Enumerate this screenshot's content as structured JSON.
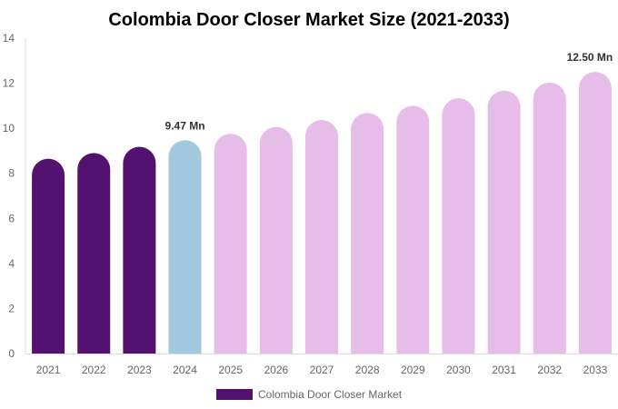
{
  "chart_data": {
    "type": "bar",
    "title": "Colombia Door Closer Market Size (2021-2033)",
    "xlabel": "",
    "ylabel": "",
    "ylim": [
      0,
      14
    ],
    "yticks": [
      "0",
      "2",
      "4",
      "6",
      "8",
      "10",
      "12",
      "14"
    ],
    "grid": false,
    "legend_position": "bottom",
    "categories": [
      "2021",
      "2022",
      "2023",
      "2024",
      "2025",
      "2026",
      "2027",
      "2028",
      "2029",
      "2030",
      "2031",
      "2032",
      "2033"
    ],
    "series": [
      {
        "name": "Colombia Door Closer Market",
        "values": [
          8.65,
          8.9,
          9.18,
          9.47,
          9.76,
          10.06,
          10.37,
          10.68,
          11.0,
          11.33,
          11.67,
          12.03,
          12.5
        ]
      }
    ],
    "bar_colors": [
      "#541270",
      "#541270",
      "#541270",
      "#a3c9de",
      "#e6bde9",
      "#e6bde9",
      "#e6bde9",
      "#e6bde9",
      "#e6bde9",
      "#e6bde9",
      "#e6bde9",
      "#e6bde9",
      "#e6bde9"
    ],
    "legend_color": "#541270",
    "data_labels": {
      "3": "9.47 Mn",
      "12": "12.50 Mn"
    }
  }
}
